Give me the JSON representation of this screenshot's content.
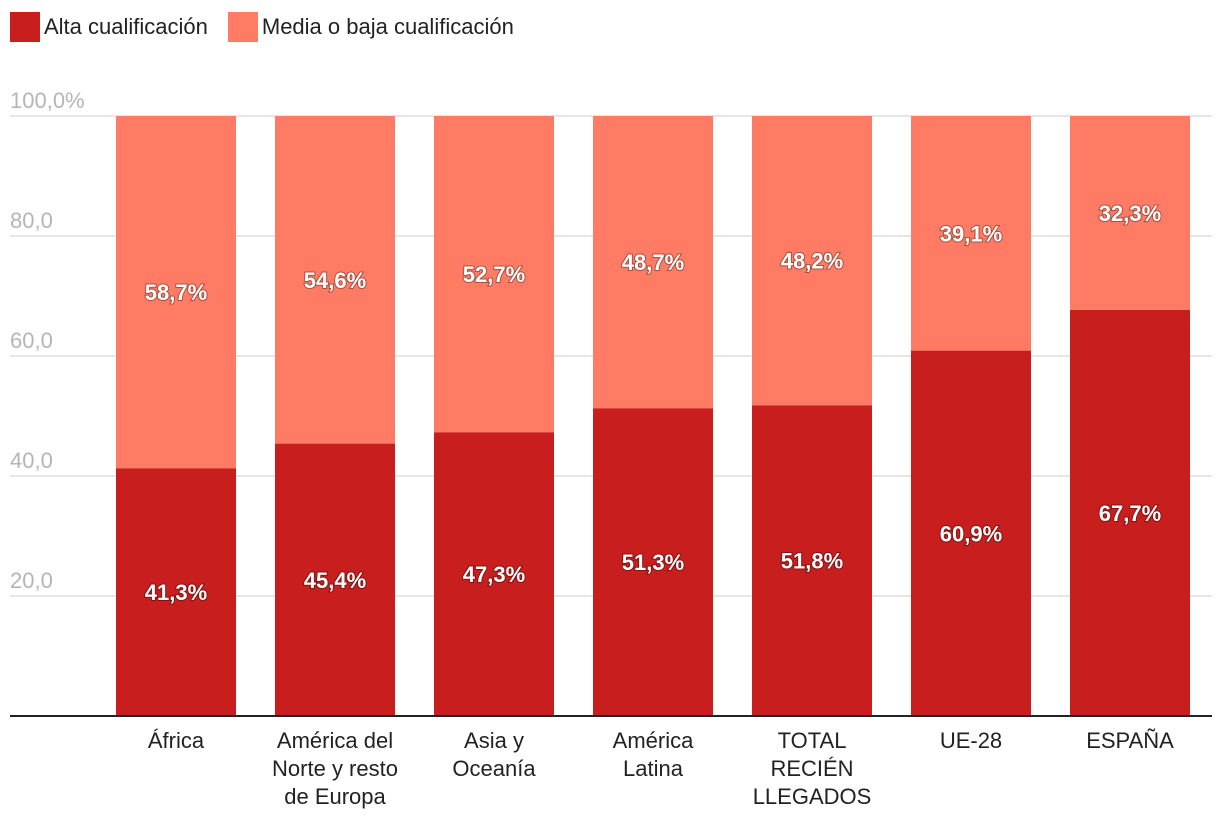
{
  "chart_data": {
    "type": "bar",
    "stacked": true,
    "categories": [
      [
        "África"
      ],
      [
        "América del",
        "Norte y resto",
        "de Europa"
      ],
      [
        "Asia y",
        "Oceanía"
      ],
      [
        "América",
        "Latina"
      ],
      [
        "TOTAL",
        "RECIÉN",
        "LLEGADOS"
      ],
      [
        "UE-28"
      ],
      [
        "ESPAÑA"
      ]
    ],
    "series": [
      {
        "name": "Alta cualificación",
        "color": "#c81e1e",
        "values": [
          41.3,
          45.4,
          47.3,
          51.3,
          51.8,
          60.9,
          67.7
        ],
        "labels": [
          "41,3%",
          "45,4%",
          "47,3%",
          "51,3%",
          "51,8%",
          "60,9%",
          "67,7%"
        ]
      },
      {
        "name": "Media o baja cualificación",
        "color": "#ff7b63",
        "values": [
          58.7,
          54.6,
          52.7,
          48.7,
          48.2,
          39.1,
          32.3
        ],
        "labels": [
          "58,7%",
          "54,6%",
          "52,7%",
          "48,7%",
          "48,2%",
          "39,1%",
          "32,3%"
        ]
      }
    ],
    "y_ticks": [
      {
        "value": 100,
        "label": "100,0%"
      },
      {
        "value": 80,
        "label": "80,0"
      },
      {
        "value": 60,
        "label": "60,0"
      },
      {
        "value": 40,
        "label": "40,0"
      },
      {
        "value": 20,
        "label": "20,0"
      }
    ],
    "ylim": [
      0,
      100
    ],
    "title": "",
    "xlabel": "",
    "ylabel": "",
    "grid": true,
    "legend_position": "top-left"
  }
}
